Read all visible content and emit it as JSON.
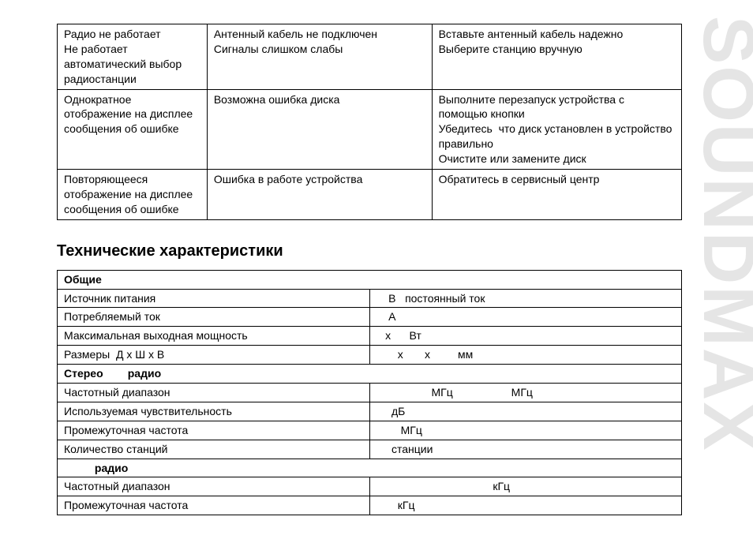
{
  "watermark": "SOUNDMAX",
  "troubleshoot": {
    "rows": [
      {
        "c1": "Радио не работает\nНе работает автоматический выбор радиостанции",
        "c2": "Антенный кабель не подключен\nСигналы слишком слабы",
        "c3": "Вставьте антенный кабель надежно\nВыберите станцию вручную"
      },
      {
        "c1": "Однократное отображение на дисплее сообщения об ошибке",
        "c2": "Возможна ошибка диска",
        "c3": "Выполните перезапуск устройства с помощью кнопки\nУбедитесь  что диск установлен в устройство правильно\nОчистите или замените диск"
      },
      {
        "c1": "Повторяющееся отображение на дисплее сообщения об ошибке",
        "c2": "Ошибка в работе устройства",
        "c3": "Обратитесь в сервисный центр"
      }
    ]
  },
  "section_title": "Технические характеристики",
  "specs": {
    "header_general": "Общие",
    "rows_general": [
      {
        "label": "Источник питания",
        "value": "    В   постоянный ток"
      },
      {
        "label": "Потребляемый ток",
        "value": "    А"
      },
      {
        "label": "Максимальная выходная мощность",
        "value": "   х      Вт"
      },
      {
        "label": "Размеры  Д х Ш х В",
        "value": "       х       х         мм"
      }
    ],
    "header_stereo": "Стерео        радио",
    "rows_stereo": [
      {
        "label": "Частотный диапазон",
        "value": "                  МГц                   МГц"
      },
      {
        "label": "Используемая чувствительность",
        "value": "     дБ"
      },
      {
        "label": "Промежуточная частота",
        "value": "        МГц"
      },
      {
        "label": "Количество станций",
        "value": "     станции"
      }
    ],
    "header_radio": "          радио",
    "rows_radio": [
      {
        "label": "Частотный диапазон",
        "value": "                                      кГц"
      },
      {
        "label": "Промежуточная частота",
        "value": "       кГц"
      }
    ]
  }
}
